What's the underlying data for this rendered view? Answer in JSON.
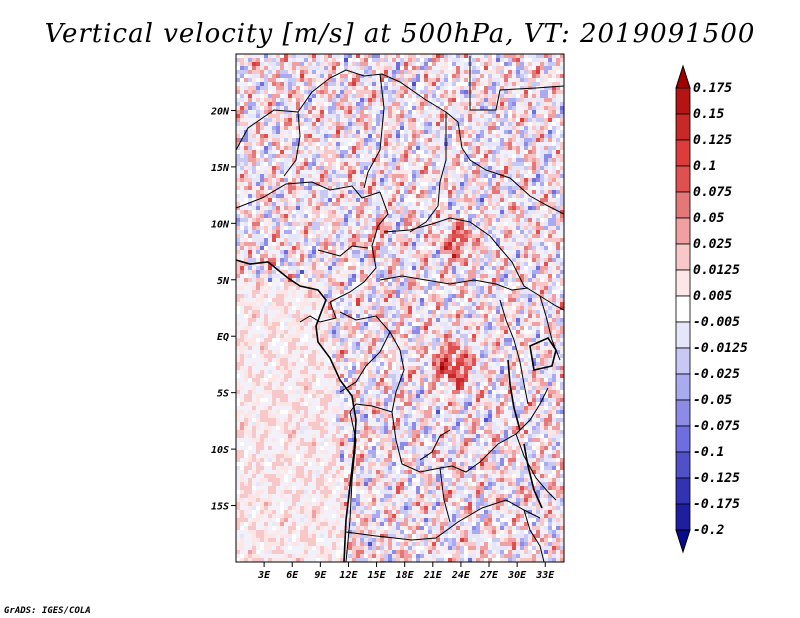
{
  "chart_data": {
    "type": "heatmap",
    "title": "Vertical velocity [m/s] at 500hPa, VT: 2019091500",
    "variable": "Vertical velocity",
    "units": "m/s",
    "level": "500hPa",
    "valid_time": "2019091500",
    "x_axis": {
      "range": [
        0,
        35
      ],
      "ticks": [
        3,
        6,
        9,
        12,
        15,
        18,
        21,
        24,
        27,
        30,
        33
      ],
      "tick_labels": [
        "3E",
        "6E",
        "9E",
        "12E",
        "15E",
        "18E",
        "21E",
        "24E",
        "27E",
        "30E",
        "33E"
      ]
    },
    "y_axis": {
      "range": [
        -20,
        25
      ],
      "ticks": [
        20,
        15,
        10,
        5,
        0,
        -5,
        -10,
        -15
      ],
      "tick_labels": [
        "20N",
        "15N",
        "10N",
        "5N",
        "EQ",
        "5S",
        "10S",
        "15S"
      ]
    },
    "colorbar": {
      "labels": [
        "0.175",
        "0.15",
        "0.125",
        "0.1",
        "0.075",
        "0.05",
        "0.025",
        "0.0125",
        "0.005",
        "-0.005",
        "-0.0125",
        "-0.025",
        "-0.05",
        "-0.075",
        "-0.1",
        "-0.125",
        "-0.175",
        "-0.2"
      ],
      "colors": [
        "#a00000",
        "#b41414",
        "#c82828",
        "#dc3c3c",
        "#e05050",
        "#e47878",
        "#f0a0a0",
        "#f8c8c8",
        "#fde6e6",
        "#ffffff",
        "#e6e6fa",
        "#c8c8f5",
        "#aaaaf0",
        "#8c8ce6",
        "#6e6ede",
        "#5050c8",
        "#3232b4",
        "#1e1ea0",
        "#0a0a8c"
      ],
      "extend": "both"
    },
    "field_summary": "Mixed small-scale ascent (red) and descent (blue) over central Africa; strongest ascent near 22-24E, 0-5S and 22-24E, 8-10N; broad weak positive values over the Atlantic west of the continent."
  },
  "credit": "GrADS: IGES/COLA"
}
